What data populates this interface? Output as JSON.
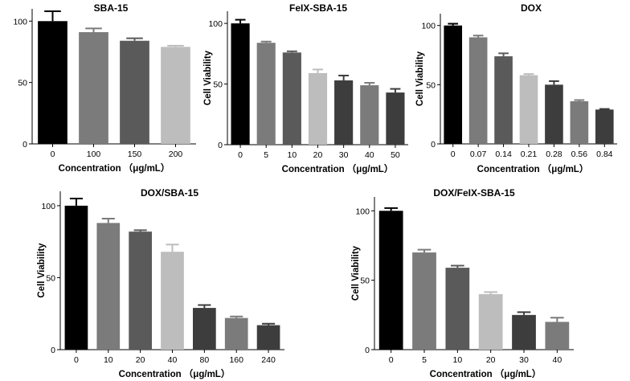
{
  "chart_data": [
    {
      "type": "bar",
      "title": "SBA-15",
      "xlabel": "Concentration （μg/mL）",
      "ylabel": "",
      "categories": [
        "0",
        "100",
        "150",
        "200"
      ],
      "values": [
        100,
        91,
        84,
        79
      ],
      "errors": [
        8,
        3,
        2,
        1
      ],
      "colors": [
        "#000000",
        "#7b7b7b",
        "#5a5a5a",
        "#bdbdbd"
      ],
      "ylim": [
        0,
        110
      ],
      "yticks": [
        0,
        50,
        100
      ]
    },
    {
      "type": "bar",
      "title": "FeIX-SBA-15",
      "xlabel": "Concentration （μg/mL）",
      "ylabel": "Cell Viability",
      "categories": [
        "0",
        "5",
        "10",
        "20",
        "30",
        "40",
        "50"
      ],
      "values": [
        100,
        84,
        76,
        59,
        53,
        49,
        43
      ],
      "errors": [
        3,
        1,
        1,
        3,
        4,
        2,
        3
      ],
      "colors": [
        "#000000",
        "#7b7b7b",
        "#5a5a5a",
        "#bdbdbd",
        "#3d3d3d",
        "#7b7b7b",
        "#3d3d3d"
      ],
      "ylim": [
        0,
        110
      ],
      "yticks": [
        0,
        50,
        100
      ]
    },
    {
      "type": "bar",
      "title": "DOX",
      "xlabel": "Concentration （μg/mL）",
      "ylabel": "Cell Viability",
      "categories": [
        "0",
        "0.07",
        "0.14",
        "0.21",
        "0.28",
        "0.56",
        "0.84"
      ],
      "values": [
        100,
        90,
        74,
        58,
        50,
        36,
        29
      ],
      "errors": [
        1.5,
        1.5,
        2.5,
        1,
        3,
        1,
        0.5
      ],
      "colors": [
        "#000000",
        "#7b7b7b",
        "#5a5a5a",
        "#bdbdbd",
        "#3d3d3d",
        "#7b7b7b",
        "#3d3d3d"
      ],
      "ylim": [
        0,
        110
      ],
      "yticks": [
        0,
        50,
        100
      ]
    },
    {
      "type": "bar",
      "title": "DOX/SBA-15",
      "xlabel": "Concentration （μg/mL）",
      "ylabel": "Cell Viability",
      "categories": [
        "0",
        "10",
        "20",
        "40",
        "80",
        "160",
        "240"
      ],
      "values": [
        100,
        88,
        82,
        68,
        29,
        22,
        17
      ],
      "errors": [
        5,
        3,
        1,
        5,
        2,
        1,
        1
      ],
      "colors": [
        "#000000",
        "#7b7b7b",
        "#5a5a5a",
        "#bdbdbd",
        "#3d3d3d",
        "#7b7b7b",
        "#3d3d3d"
      ],
      "ylim": [
        0,
        110
      ],
      "yticks": [
        0,
        50,
        100
      ]
    },
    {
      "type": "bar",
      "title": "DOX/FeIX-SBA-15",
      "xlabel": "Concentration （μg/mL）",
      "ylabel": "Cell Viability",
      "categories": [
        "0",
        "5",
        "10",
        "20",
        "30",
        "40"
      ],
      "values": [
        100,
        70,
        59,
        40,
        25,
        20
      ],
      "errors": [
        2,
        2,
        1.5,
        1.5,
        2,
        3
      ],
      "colors": [
        "#000000",
        "#7b7b7b",
        "#5a5a5a",
        "#bdbdbd",
        "#3d3d3d",
        "#7b7b7b"
      ],
      "ylim": [
        0,
        110
      ],
      "yticks": [
        0,
        50,
        100
      ]
    }
  ]
}
